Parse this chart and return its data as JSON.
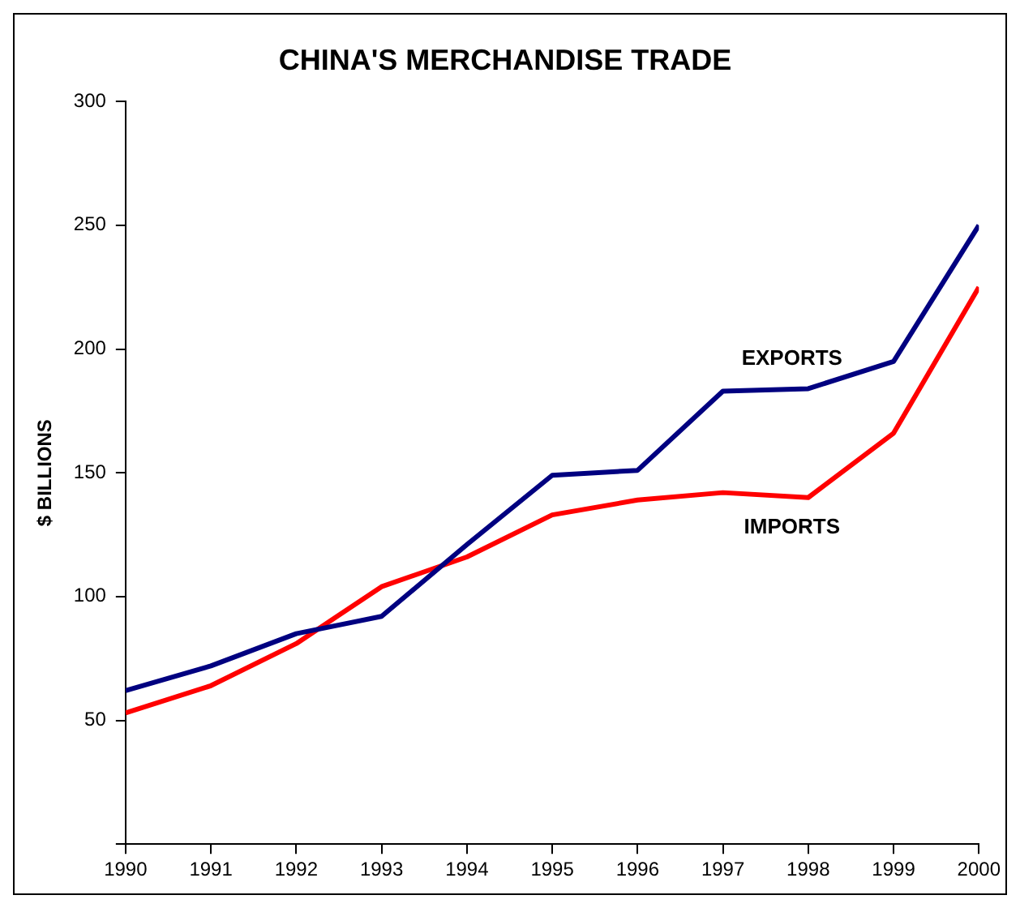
{
  "chart_data": {
    "type": "line",
    "title": "CHINA'S MERCHANDISE TRADE",
    "ylabel": "$ BILLIONS",
    "x": [
      1990,
      1991,
      1992,
      1993,
      1994,
      1995,
      1996,
      1997,
      1998,
      1999,
      2000
    ],
    "series": [
      {
        "name": "EXPORTS",
        "color": "#000080",
        "values": [
          62,
          72,
          85,
          92,
          121,
          149,
          151,
          183,
          184,
          195,
          250
        ]
      },
      {
        "name": "IMPORTS",
        "color": "#ff0000",
        "values": [
          53,
          64,
          81,
          104,
          116,
          133,
          139,
          142,
          140,
          166,
          225
        ]
      }
    ],
    "xlim": [
      1990,
      2000
    ],
    "xticks": [
      1990,
      1991,
      1992,
      1993,
      1994,
      1995,
      1996,
      1997,
      1998,
      1999,
      2000
    ],
    "ylim": [
      0,
      300
    ],
    "yticks": [
      {
        "value": 0,
        "label": null
      },
      50,
      100,
      150,
      200,
      250,
      300
    ],
    "grid": false,
    "legend": false,
    "marker": "none",
    "line_style": "solid"
  }
}
